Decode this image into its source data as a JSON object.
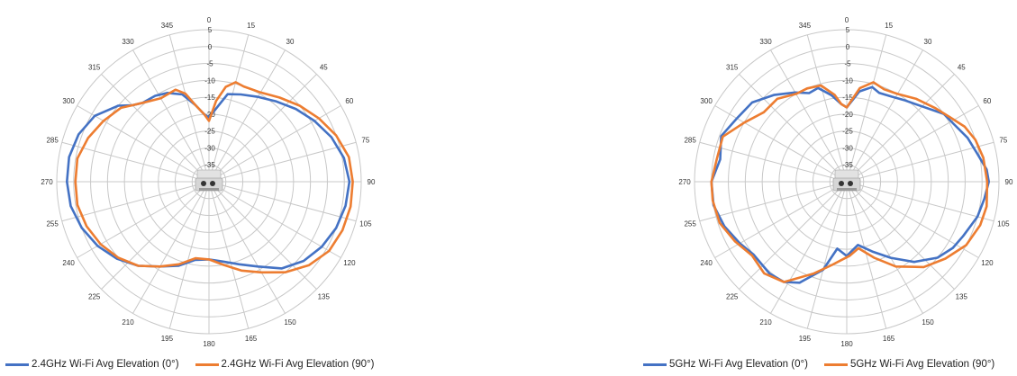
{
  "colors": {
    "series0": "#4472C4",
    "series1": "#ED7D31",
    "grid": "#c8c8c8",
    "axis_text": "#333333"
  },
  "device_icon": "router-device-icon",
  "chart_data": [
    {
      "type": "polar-line",
      "radial_axis": {
        "min": -40,
        "max": 5,
        "step": 5,
        "tick_labels": [
          "-35",
          "-30",
          "-25",
          "-20",
          "-15",
          "-10",
          "-5",
          "0",
          "5"
        ]
      },
      "angular_axis": {
        "step": 15,
        "direction": "clockwise",
        "zero_at": "top",
        "tick_labels": [
          "0",
          "15",
          "30",
          "45",
          "60",
          "75",
          "90",
          "105",
          "120",
          "135",
          "150",
          "165",
          "180",
          "195",
          "210",
          "225",
          "240",
          "255",
          "270",
          "285",
          "300",
          "315",
          "330",
          "345"
        ]
      },
      "legend_position": "bottom",
      "series": [
        {
          "name": "2.4GHz Wi-Fi Avg Elevation (0°)",
          "points": [
            [
              0,
              -21
            ],
            [
              6,
              -18
            ],
            [
              12,
              -13.5
            ],
            [
              20,
              -12.5
            ],
            [
              30,
              -11
            ],
            [
              40,
              -9
            ],
            [
              50,
              -6.5
            ],
            [
              60,
              -4
            ],
            [
              70,
              -1.5
            ],
            [
              80,
              0.5
            ],
            [
              90,
              1.5
            ],
            [
              100,
              1
            ],
            [
              110,
              0
            ],
            [
              120,
              -1.5
            ],
            [
              130,
              -3.5
            ],
            [
              140,
              -6.5
            ],
            [
              150,
              -11
            ],
            [
              160,
              -14
            ],
            [
              170,
              -16
            ],
            [
              180,
              -17
            ],
            [
              190,
              -16.5
            ],
            [
              200,
              -13.5
            ],
            [
              210,
              -11
            ],
            [
              220,
              -7.5
            ],
            [
              230,
              -4.5
            ],
            [
              240,
              -2
            ],
            [
              250,
              0
            ],
            [
              260,
              1.5
            ],
            [
              270,
              2
            ],
            [
              280,
              2
            ],
            [
              290,
              1
            ],
            [
              300,
              -1
            ],
            [
              310,
              -5
            ],
            [
              315,
              -8
            ],
            [
              320,
              -9.5
            ],
            [
              328,
              -10
            ],
            [
              335,
              -11
            ],
            [
              343,
              -13
            ],
            [
              350,
              -17
            ],
            [
              356,
              -20
            ],
            [
              360,
              -21
            ]
          ]
        },
        {
          "name": "2.4GHz Wi-Fi Avg Elevation (90°)",
          "points": [
            [
              0,
              -22
            ],
            [
              5,
              -16
            ],
            [
              10,
              -11.5
            ],
            [
              15,
              -9.5
            ],
            [
              20,
              -10
            ],
            [
              30,
              -9.5
            ],
            [
              40,
              -7.5
            ],
            [
              50,
              -5
            ],
            [
              60,
              -2.5
            ],
            [
              70,
              0
            ],
            [
              80,
              2
            ],
            [
              90,
              2.5
            ],
            [
              100,
              2.5
            ],
            [
              110,
              2
            ],
            [
              120,
              1
            ],
            [
              130,
              -1.5
            ],
            [
              140,
              -5
            ],
            [
              150,
              -9
            ],
            [
              160,
              -12
            ],
            [
              170,
              -15
            ],
            [
              180,
              -17
            ],
            [
              190,
              -17
            ],
            [
              200,
              -14
            ],
            [
              210,
              -11
            ],
            [
              220,
              -7.5
            ],
            [
              230,
              -5
            ],
            [
              240,
              -3
            ],
            [
              250,
              -1.5
            ],
            [
              260,
              -0.5
            ],
            [
              270,
              -0.5
            ],
            [
              280,
              -0.5
            ],
            [
              290,
              -2
            ],
            [
              300,
              -4
            ],
            [
              310,
              -6
            ],
            [
              315,
              -8
            ],
            [
              320,
              -9.5
            ],
            [
              330,
              -11.5
            ],
            [
              340,
              -11
            ],
            [
              345,
              -13
            ],
            [
              350,
              -17
            ],
            [
              356,
              -20
            ],
            [
              360,
              -22
            ]
          ]
        }
      ]
    },
    {
      "type": "polar-line",
      "radial_axis": {
        "min": -40,
        "max": 5,
        "step": 5,
        "tick_labels": [
          "-35",
          "-30",
          "-25",
          "-20",
          "-15",
          "-10",
          "-5",
          "0",
          "5"
        ]
      },
      "angular_axis": {
        "step": 15,
        "direction": "clockwise",
        "zero_at": "top",
        "tick_labels": [
          "0",
          "15",
          "30",
          "45",
          "60",
          "75",
          "90",
          "105",
          "120",
          "135",
          "150",
          "165",
          "180",
          "195",
          "210",
          "225",
          "240",
          "255",
          "270",
          "285",
          "300",
          "315",
          "330",
          "345"
        ]
      },
      "legend_position": "bottom",
      "series": [
        {
          "name": "5GHz Wi-Fi Avg Elevation (0°)",
          "points": [
            [
              0,
              -18
            ],
            [
              8,
              -13
            ],
            [
              15,
              -11
            ],
            [
              20,
              -12
            ],
            [
              28,
              -11.5
            ],
            [
              35,
              -10.5
            ],
            [
              45,
              -8.5
            ],
            [
              55,
              -5
            ],
            [
              62,
              -4
            ],
            [
              70,
              -2
            ],
            [
              78,
              -0.5
            ],
            [
              85,
              1.5
            ],
            [
              90,
              2
            ],
            [
              97,
              1
            ],
            [
              105,
              0
            ],
            [
              115,
              -2
            ],
            [
              122,
              -3
            ],
            [
              130,
              -5
            ],
            [
              140,
              -9
            ],
            [
              150,
              -14
            ],
            [
              160,
              -18
            ],
            [
              170,
              -21
            ],
            [
              180,
              -18
            ],
            [
              188,
              -20
            ],
            [
              195,
              -13
            ],
            [
              205,
              -7
            ],
            [
              212,
              -5
            ],
            [
              220,
              -4.5
            ],
            [
              232,
              -5
            ],
            [
              240,
              -3.5
            ],
            [
              250,
              -1.5
            ],
            [
              260,
              0
            ],
            [
              270,
              0
            ],
            [
              280,
              -2
            ],
            [
              290,
              -0.5
            ],
            [
              300,
              -2.5
            ],
            [
              310,
              -3.5
            ],
            [
              320,
              -6.5
            ],
            [
              330,
              -9.5
            ],
            [
              337,
              -11.5
            ],
            [
              343,
              -11
            ],
            [
              350,
              -14
            ],
            [
              356,
              -17
            ],
            [
              360,
              -18
            ]
          ]
        },
        {
          "name": "5GHz Wi-Fi Avg Elevation (90°)",
          "points": [
            [
              0,
              -18
            ],
            [
              8,
              -12
            ],
            [
              15,
              -9.5
            ],
            [
              22,
              -10.5
            ],
            [
              30,
              -10
            ],
            [
              40,
              -8
            ],
            [
              50,
              -6
            ],
            [
              58,
              -4
            ],
            [
              65,
              -1.5
            ],
            [
              72,
              0
            ],
            [
              80,
              1
            ],
            [
              90,
              1.5
            ],
            [
              100,
              2
            ],
            [
              108,
              1.5
            ],
            [
              118,
              0
            ],
            [
              128,
              -3
            ],
            [
              138,
              -6
            ],
            [
              150,
              -11
            ],
            [
              160,
              -16
            ],
            [
              170,
              -20
            ],
            [
              178,
              -18
            ],
            [
              183,
              -17
            ],
            [
              190,
              -15
            ],
            [
              200,
              -11
            ],
            [
              212,
              -5
            ],
            [
              222,
              -3.5
            ],
            [
              232,
              -4.5
            ],
            [
              242,
              -2.5
            ],
            [
              252,
              -0.5
            ],
            [
              262,
              0
            ],
            [
              270,
              0
            ],
            [
              280,
              -1
            ],
            [
              290,
              -1
            ],
            [
              300,
              -5
            ],
            [
              310,
              -8
            ],
            [
              320,
              -8
            ],
            [
              330,
              -10
            ],
            [
              337,
              -10
            ],
            [
              345,
              -10.5
            ],
            [
              352,
              -14
            ],
            [
              356,
              -17
            ],
            [
              360,
              -18
            ]
          ]
        }
      ]
    }
  ]
}
